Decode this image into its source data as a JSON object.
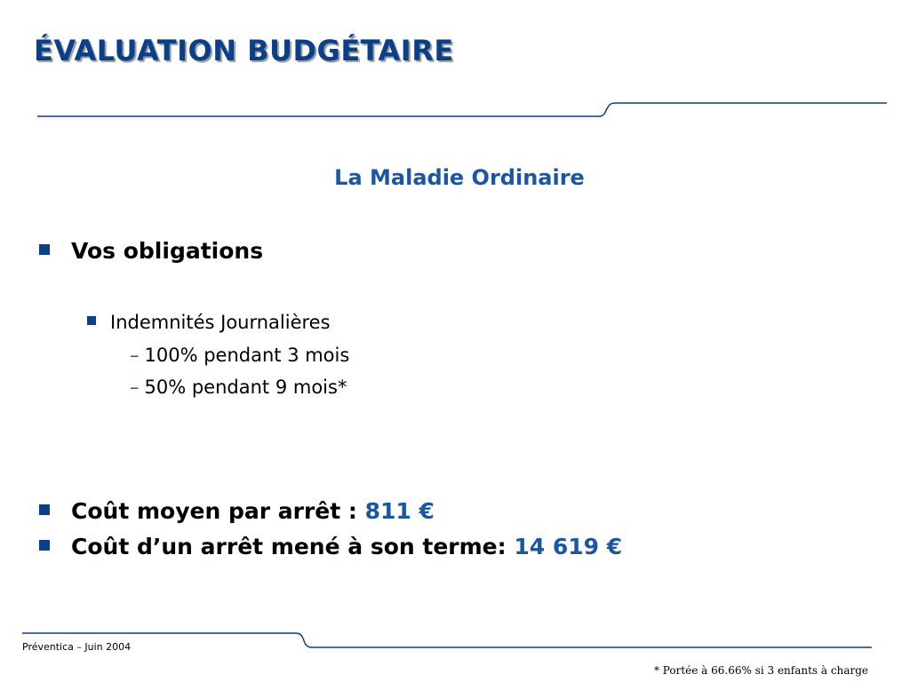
{
  "slide": {
    "title": "ÉVALUATION BUDGÉTAIRE",
    "subtitle": "La Maladie Ordinaire",
    "section_heading": "Vos obligations",
    "sub_item": "Indemnités Journalières",
    "details": [
      "100% pendant 3 mois",
      "50% pendant 9 mois*"
    ],
    "cost_average_label": "Coût moyen par arrêt :",
    "cost_average_value": "811 €",
    "cost_full_label": "Coût d’un arrêt mené à son terme:",
    "cost_full_value": "14 619 €",
    "dash_symbol": "–"
  },
  "footer": {
    "left": "Préventica – Juin 2004",
    "note": "* Portée à 66.66% si 3 enfants à charge"
  },
  "colors": {
    "title": "#0a3f8a",
    "accent": "#1a56a6",
    "rule": "#0a3f8a"
  }
}
